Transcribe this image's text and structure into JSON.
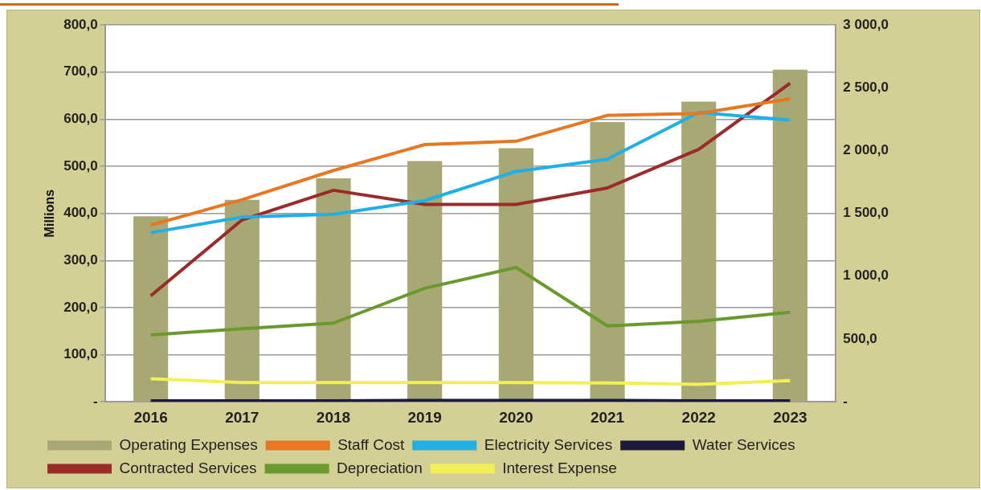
{
  "chart_data": {
    "type": "line",
    "ylabel": "Millions",
    "categories": [
      "2016",
      "2017",
      "2018",
      "2019",
      "2020",
      "2021",
      "2022",
      "2023"
    ],
    "series": [
      {
        "name": "Operating Expenses",
        "type": "bar",
        "axis": "y2",
        "color": "#a8a874",
        "values": [
          1477,
          1608,
          1778,
          1917,
          2018,
          2227,
          2389,
          2644
        ]
      },
      {
        "name": "Staff Cost",
        "color": "#e87722",
        "values": [
          375,
          429,
          491,
          546,
          553,
          608,
          612,
          643
        ]
      },
      {
        "name": "Electricity Services",
        "color": "#1fb0e8",
        "values": [
          359,
          392,
          398,
          427,
          489,
          515,
          614,
          598
        ]
      },
      {
        "name": "Water Services",
        "color": "#1a1a3a",
        "values": [
          2,
          2,
          2,
          3,
          3,
          3,
          2,
          2
        ]
      },
      {
        "name": "Contracted Services",
        "color": "#9b2a2a",
        "values": [
          225,
          386,
          449,
          419,
          419,
          454,
          536,
          676
        ]
      },
      {
        "name": "Depreciation",
        "color": "#6a9a2e",
        "values": [
          142,
          155,
          167,
          241,
          285,
          161,
          171,
          190
        ]
      },
      {
        "name": "Interest Expense",
        "color": "#f2f056",
        "values": [
          49,
          41,
          41,
          41,
          41,
          40,
          37,
          45
        ]
      }
    ],
    "ylim": [
      0,
      800
    ],
    "yticks": [
      {
        "value": 0,
        "label": "-"
      },
      {
        "value": 100,
        "label": "100,0"
      },
      {
        "value": 200,
        "label": "200,0"
      },
      {
        "value": 300,
        "label": "300,0"
      },
      {
        "value": 400,
        "label": "400,0"
      },
      {
        "value": 500,
        "label": "500,0"
      },
      {
        "value": 600,
        "label": "600,0"
      },
      {
        "value": 700,
        "label": "700,0"
      },
      {
        "value": 800,
        "label": "800,0"
      }
    ],
    "y2lim": [
      0,
      3000
    ],
    "y2ticks": [
      {
        "value": 0,
        "label": "-"
      },
      {
        "value": 500,
        "label": "500,0"
      },
      {
        "value": 1000,
        "label": "1 000,0"
      },
      {
        "value": 1500,
        "label": "1 500,0"
      },
      {
        "value": 2000,
        "label": "2 000,0"
      },
      {
        "value": 2500,
        "label": "2 500,0"
      },
      {
        "value": 3000,
        "label": "3 000,0"
      }
    ],
    "grid": "y",
    "legend": "bottom",
    "marker": "none",
    "line_style": "solid"
  }
}
